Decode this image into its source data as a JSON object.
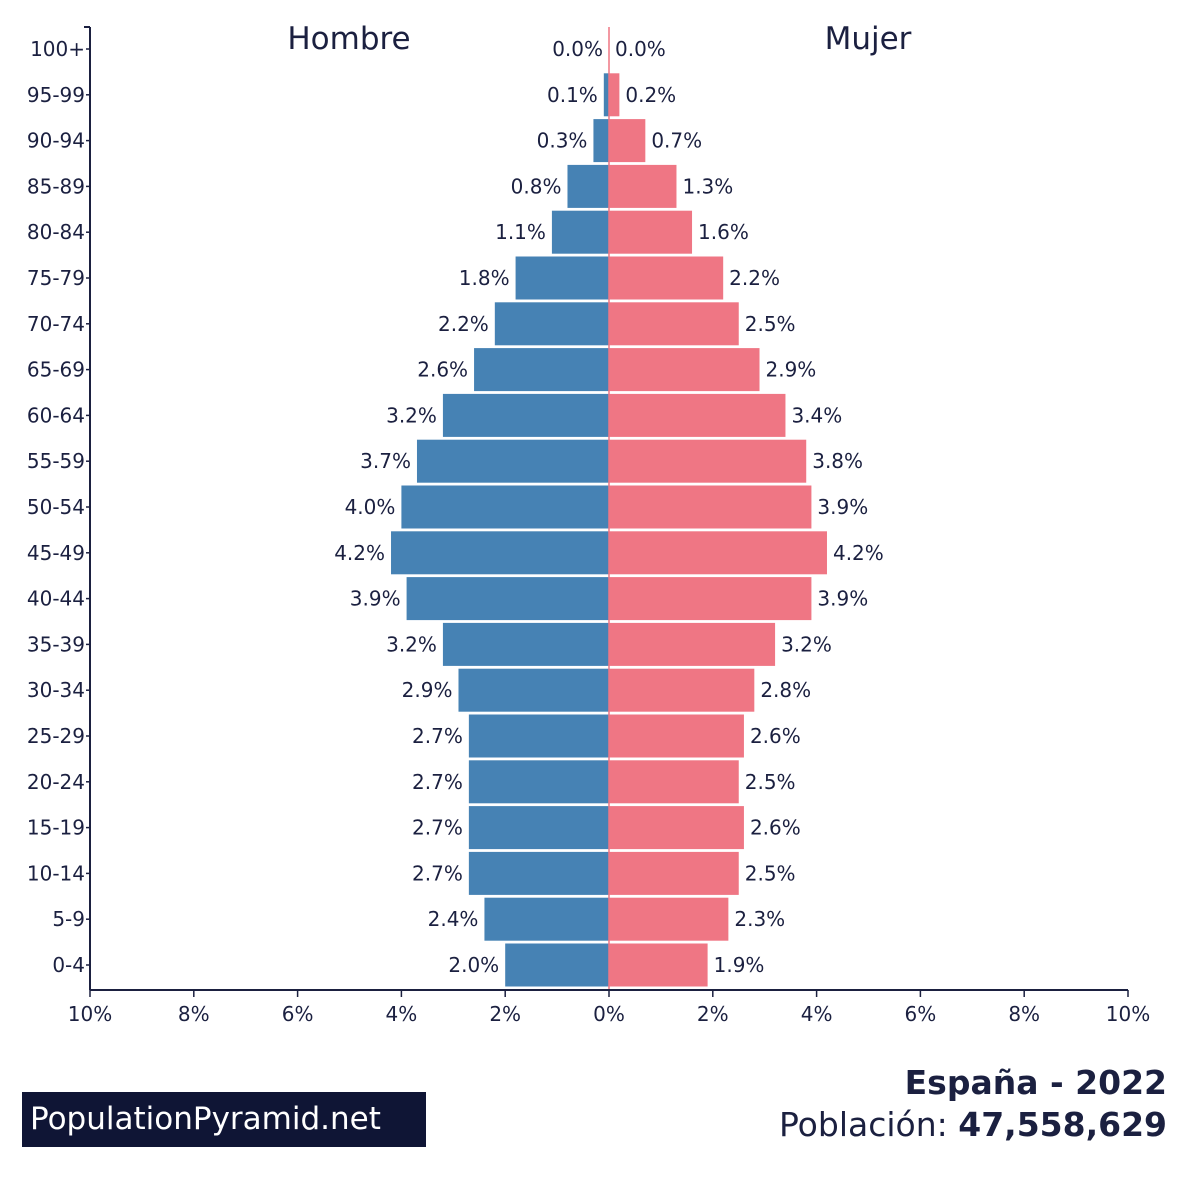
{
  "chart_data": {
    "type": "bar",
    "orientation": "horizontal",
    "layout": "population-pyramid",
    "age_groups": [
      "100+",
      "95-99",
      "90-94",
      "85-89",
      "80-84",
      "75-79",
      "70-74",
      "65-69",
      "60-64",
      "55-59",
      "50-54",
      "45-49",
      "40-44",
      "35-39",
      "30-34",
      "25-29",
      "20-24",
      "15-19",
      "10-14",
      "5-9",
      "0-4"
    ],
    "series": [
      {
        "name": "Hombre",
        "side": "left",
        "color": "#4682b4",
        "values": [
          0.0,
          0.1,
          0.3,
          0.8,
          1.1,
          1.8,
          2.2,
          2.6,
          3.2,
          3.7,
          4.0,
          4.2,
          3.9,
          3.2,
          2.9,
          2.7,
          2.7,
          2.7,
          2.7,
          2.4,
          2.0
        ],
        "labels": [
          "0.0%",
          "0.1%",
          "0.3%",
          "0.8%",
          "1.1%",
          "1.8%",
          "2.2%",
          "2.6%",
          "3.2%",
          "3.7%",
          "4.0%",
          "4.2%",
          "3.9%",
          "3.2%",
          "2.9%",
          "2.7%",
          "2.7%",
          "2.7%",
          "2.7%",
          "2.4%",
          "2.0%"
        ]
      },
      {
        "name": "Mujer",
        "side": "right",
        "color": "#ef7684",
        "values": [
          0.0,
          0.2,
          0.7,
          1.3,
          1.6,
          2.2,
          2.5,
          2.9,
          3.4,
          3.8,
          3.9,
          4.2,
          3.9,
          3.2,
          2.8,
          2.6,
          2.5,
          2.6,
          2.5,
          2.3,
          1.9
        ],
        "labels": [
          "0.0%",
          "0.2%",
          "0.7%",
          "1.3%",
          "1.6%",
          "2.2%",
          "2.5%",
          "2.9%",
          "3.4%",
          "3.8%",
          "3.9%",
          "4.2%",
          "3.9%",
          "3.2%",
          "2.8%",
          "2.6%",
          "2.5%",
          "2.6%",
          "2.5%",
          "2.3%",
          "1.9%"
        ]
      }
    ],
    "x_range": [
      -10,
      10
    ],
    "x_ticks": [
      -10,
      -8,
      -6,
      -4,
      -2,
      0,
      2,
      4,
      6,
      8,
      10
    ],
    "x_tick_labels": [
      "10%",
      "8%",
      "6%",
      "4%",
      "2%",
      "0%",
      "2%",
      "4%",
      "6%",
      "8%",
      "10%"
    ],
    "grid": false,
    "axis_color": "#1b2040"
  },
  "titles": {
    "left": "Hombre",
    "right": "Mujer"
  },
  "caption": {
    "country": "España - 2022",
    "population_label": "Población: ",
    "population_value": "47,558,629"
  },
  "watermark": "PopulationPyramid.net"
}
